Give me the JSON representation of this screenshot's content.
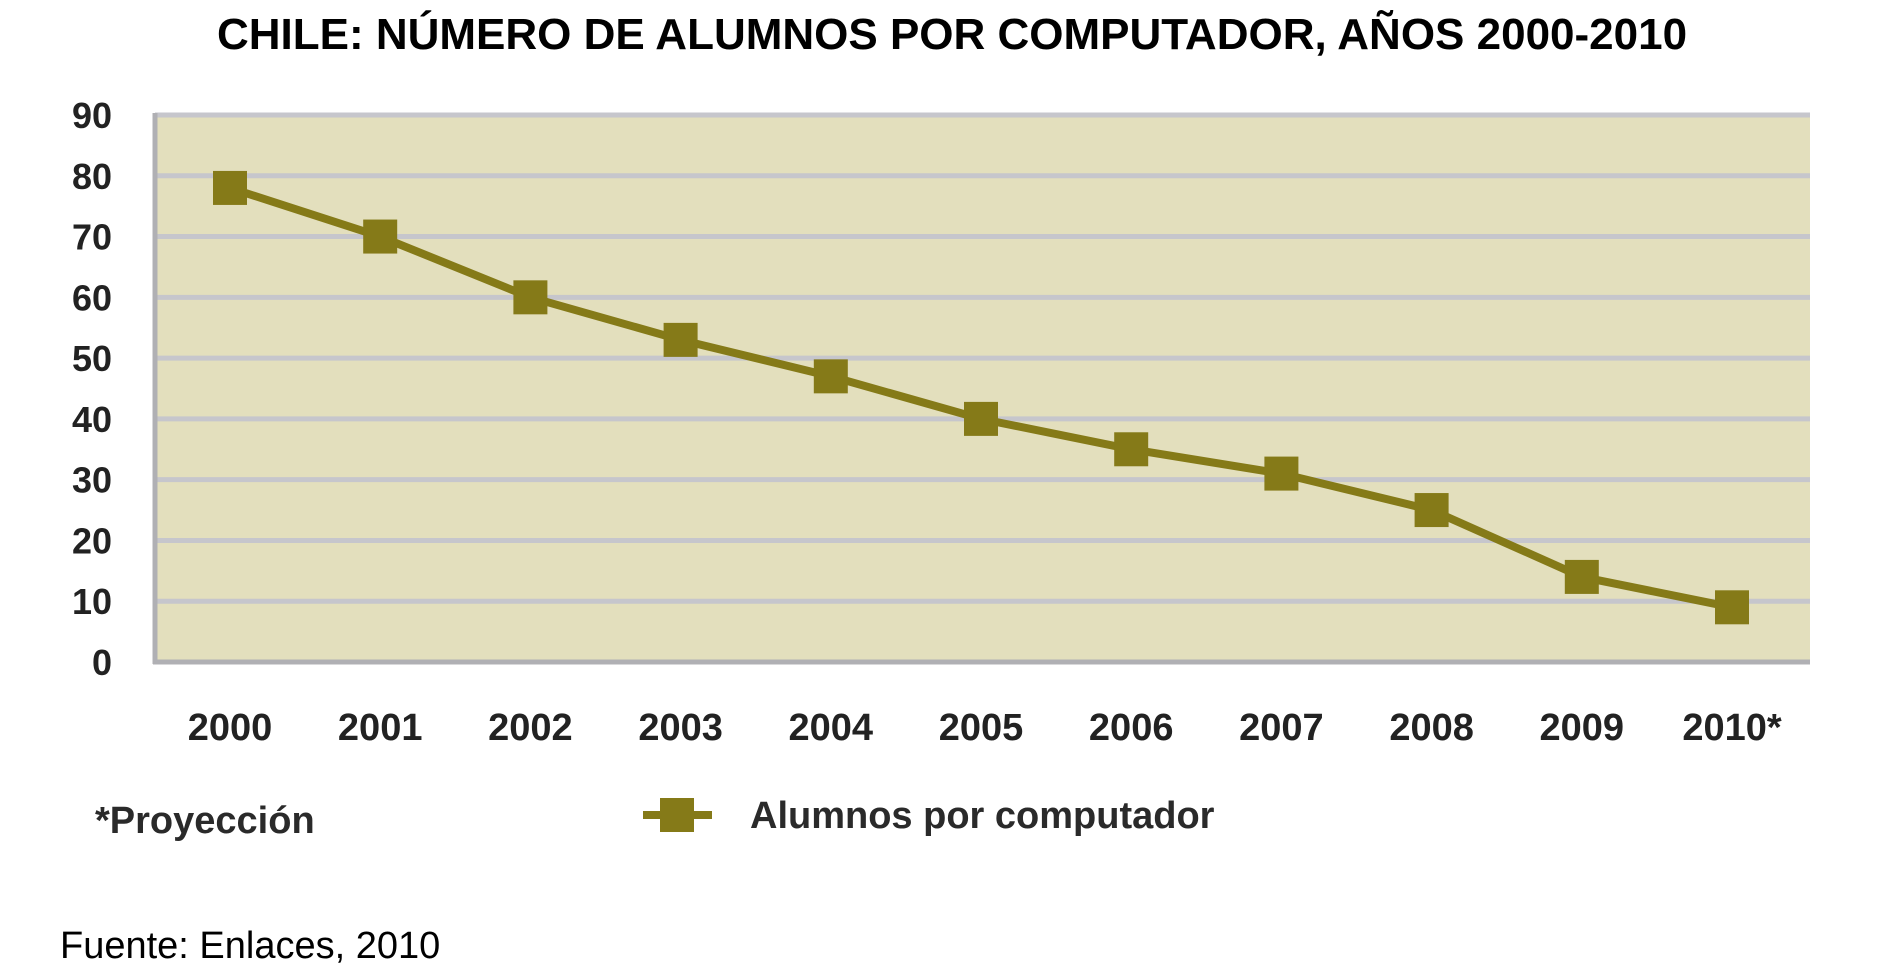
{
  "colors": {
    "plot_background": "#e3dfbd",
    "gridline": "#c6c6cc",
    "series": "#857a18",
    "axis": "#b0b0b4"
  },
  "footnote": "*Proyección",
  "source": "Fuente: Enlaces, 2010",
  "chart_data": {
    "type": "line",
    "title": "CHILE: NÚMERO DE ALUMNOS POR COMPUTADOR, AÑOS 2000-2010",
    "xlabel": "",
    "ylabel": "",
    "categories": [
      "2000",
      "2001",
      "2002",
      "2003",
      "2004",
      "2005",
      "2006",
      "2007",
      "2008",
      "2009",
      "2010*"
    ],
    "series": [
      {
        "name": "Alumnos por computador",
        "values": [
          78,
          70,
          60,
          53,
          47,
          40,
          35,
          31,
          25,
          14,
          9
        ]
      }
    ],
    "ylim": [
      0,
      90
    ],
    "yticks": [
      0,
      10,
      20,
      30,
      40,
      50,
      60,
      70,
      80,
      90
    ],
    "grid": true,
    "legend": "bottom-center",
    "marker": "square"
  }
}
